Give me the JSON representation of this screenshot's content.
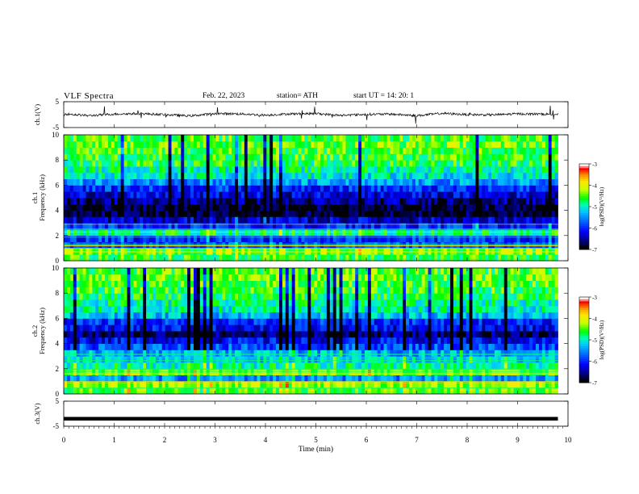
{
  "header": {
    "title": "VLF  Spectra",
    "date": "Feb. 22, 2023",
    "station": "station= ATH",
    "start": "start  UT  =    14: 20: 1"
  },
  "chart_data": [
    {
      "type": "line",
      "panel": "ch1-waveform",
      "ylabel": "ch.1(V)",
      "ylim": [
        -5,
        5
      ],
      "ytick_labels": [
        "-5",
        "5"
      ],
      "x": [
        0.0,
        0.5,
        1.0,
        1.5,
        2.0,
        2.5,
        3.0,
        3.5,
        4.0,
        4.5,
        5.0,
        5.5,
        6.0,
        6.5,
        7.0,
        7.5,
        8.0,
        8.5,
        9.0,
        9.5,
        9.8
      ],
      "values": [
        0.3,
        -0.4,
        0.2,
        0.4,
        0.0,
        -0.5,
        0.4,
        0.3,
        -0.2,
        0.3,
        0.4,
        -0.3,
        0.1,
        0.2,
        -0.4,
        0.5,
        0.0,
        -0.1,
        0.3,
        0.2,
        0.1
      ]
    },
    {
      "type": "heatmap",
      "panel": "ch1-spectrogram",
      "ylabel": "ch.1\nFrequency  (kHz)",
      "ylim": [
        0,
        10
      ],
      "ytick_labels": [
        "0",
        "2",
        "4",
        "6",
        "8",
        "10"
      ],
      "colorbar_label": "log(PSD)(V²/Hz)",
      "colorbar_range": [
        -7,
        -3
      ],
      "colorbar_ticks": [
        "-3",
        "-4",
        "-5",
        "-6",
        "-7"
      ],
      "frequency_kHz": [
        0.25,
        0.75,
        1.25,
        1.75,
        2.25,
        2.75,
        3.25,
        3.75,
        4.25,
        4.75,
        5.25,
        5.75,
        6.25,
        6.75,
        7.25,
        7.75,
        8.25,
        8.75,
        9.25,
        9.75
      ],
      "mean_log_psd": [
        -4.6,
        -4.4,
        -5.9,
        -6.0,
        -4.8,
        -6.0,
        -6.4,
        -6.9,
        -6.9,
        -6.6,
        -6.3,
        -6.0,
        -5.5,
        -5.1,
        -4.9,
        -4.7,
        -4.6,
        -4.5,
        -4.4,
        -4.5
      ]
    },
    {
      "type": "heatmap",
      "panel": "ch2-spectrogram",
      "ylabel": "ch.2\nFrequency  (kHz)",
      "ylim": [
        0,
        10
      ],
      "ytick_labels": [
        "0",
        "2",
        "4",
        "6",
        "8",
        "10"
      ],
      "colorbar_label": "log(PSD)(V²/Hz)",
      "colorbar_range": [
        -7,
        -3
      ],
      "colorbar_ticks": [
        "-3",
        "-4",
        "-5",
        "-6",
        "-7"
      ],
      "frequency_kHz": [
        0.25,
        0.75,
        1.25,
        1.75,
        2.25,
        2.75,
        3.25,
        3.75,
        4.25,
        4.75,
        5.25,
        5.75,
        6.25,
        6.75,
        7.25,
        7.75,
        8.25,
        8.75,
        9.25,
        9.75
      ],
      "mean_log_psd": [
        -4.5,
        -4.3,
        -5.5,
        -4.4,
        -4.9,
        -5.2,
        -5.4,
        -5.8,
        -6.2,
        -6.7,
        -6.2,
        -6.0,
        -5.3,
        -5.0,
        -4.9,
        -4.7,
        -4.6,
        -4.5,
        -4.4,
        -4.5
      ]
    },
    {
      "type": "line",
      "panel": "ch3-waveform",
      "ylabel": "ch.3(V)",
      "ylim": [
        -5,
        5
      ],
      "ytick_labels": [
        "-5",
        "5"
      ],
      "x": [
        0.0,
        9.8
      ],
      "values": [
        -2.0,
        -2.0
      ]
    }
  ],
  "x_axis": {
    "label": "Time  (min)",
    "xlim": [
      0,
      10
    ],
    "tick_labels": [
      "0",
      "1",
      "2",
      "3",
      "4",
      "5",
      "6",
      "7",
      "8",
      "9",
      "10"
    ]
  },
  "colormap": [
    "#000000",
    "#00008c",
    "#0000ff",
    "#0064ff",
    "#00c8ff",
    "#00ffb4",
    "#00ff00",
    "#c8ff00",
    "#ffe600",
    "#ff8c00",
    "#ff0000",
    "#ffffff"
  ]
}
